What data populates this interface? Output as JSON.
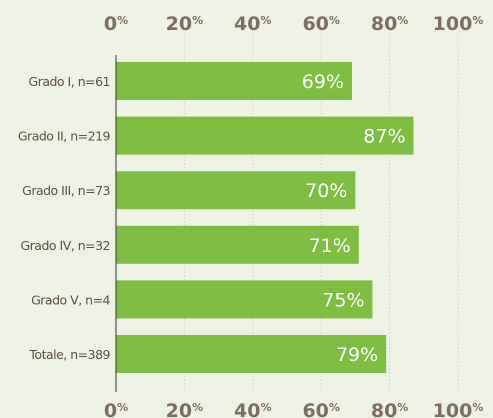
{
  "chart_data": {
    "type": "bar",
    "orientation": "horizontal",
    "categories": [
      "Grado I, n=61",
      "Grado II, n=219",
      "Grado III, n=73",
      "Grado IV, n=32",
      "Grado V, n=4",
      "Totale, n=389"
    ],
    "values": [
      69,
      87,
      70,
      71,
      75,
      79
    ],
    "data_labels": [
      "69%",
      "87%",
      "70%",
      "71%",
      "75%",
      "79%"
    ],
    "xlim": [
      0,
      100
    ],
    "xticks": [
      0,
      20,
      40,
      60,
      80,
      100
    ],
    "tick_number_labels": [
      "0",
      "20",
      "40",
      "60",
      "80",
      "100"
    ],
    "tick_unit": "%",
    "x_axis_position": "top-and-bottom",
    "grid": true,
    "title": "",
    "xlabel": "",
    "ylabel": "",
    "colors": {
      "bar": "#7cbd42",
      "grid": "#c8c9bf",
      "tick_text": "#7d6e60",
      "category_text": "#5a4f45",
      "bar_label_text": "#ffffff",
      "background": "#eef2e4",
      "axis": "#333333"
    }
  }
}
